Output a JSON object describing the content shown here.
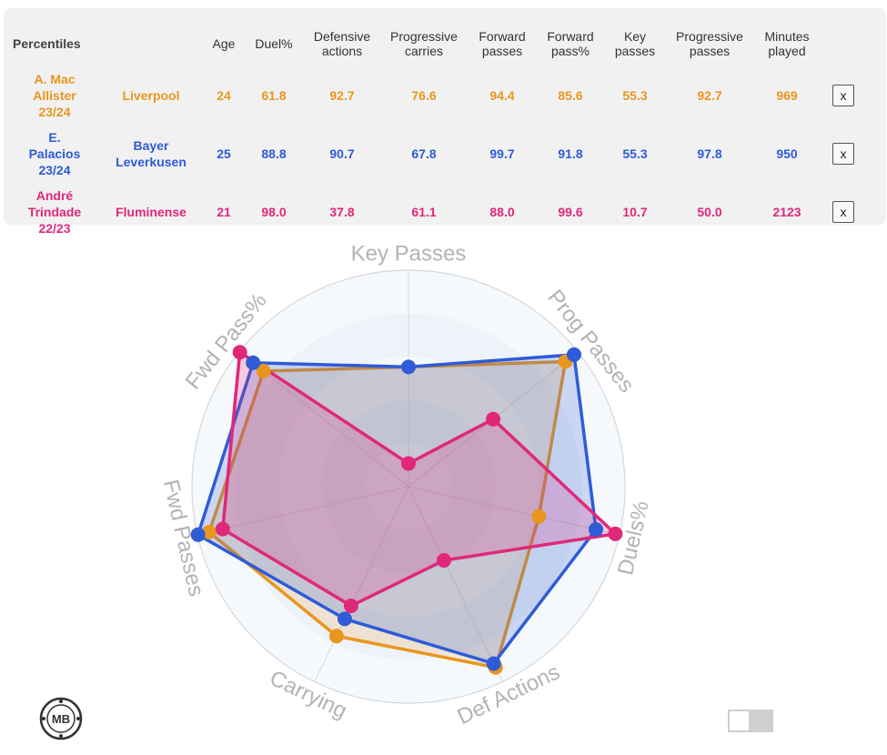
{
  "table": {
    "title": "Percentiles",
    "headers": [
      "Age",
      "Duel%",
      "Defensive\nactions",
      "Progressive\ncarries",
      "Forward\npasses",
      "Forward\npass%",
      "Key\npasses",
      "Progressive\npasses",
      "Minutes\nplayed"
    ],
    "remove_label": "x",
    "rows": [
      {
        "player": "A. Mac\nAllister\n23/24",
        "team": "Liverpool",
        "color": "#e8961f",
        "values": [
          "24",
          "61.8",
          "92.7",
          "76.6",
          "94.4",
          "85.6",
          "55.3",
          "92.7",
          "969"
        ]
      },
      {
        "player": "E.\nPalacios\n23/24",
        "team": "Bayer\nLeverkusen",
        "color": "#2f5bd6",
        "values": [
          "25",
          "88.8",
          "90.7",
          "67.8",
          "99.7",
          "91.8",
          "55.3",
          "97.8",
          "950"
        ]
      },
      {
        "player": "André\nTrindade\n22/23",
        "team": "Fluminense",
        "color": "#e0287a",
        "values": [
          "21",
          "98.0",
          "37.8",
          "61.1",
          "88.0",
          "99.6",
          "10.7",
          "50.0",
          "2123"
        ]
      }
    ]
  },
  "chart_data": {
    "type": "radar",
    "axes": [
      "Key Passes",
      "Prog Passes",
      "Duels%",
      "Def Actions",
      "Carrying",
      "Fwd Passes",
      "Fwd Pass%"
    ],
    "range": [
      0,
      100
    ],
    "grid": true,
    "series": [
      {
        "name": "A. Mac Allister 23/24",
        "color": "#e8961f",
        "fill": "rgba(232,150,31,0.18)",
        "values": [
          55.3,
          92.7,
          61.8,
          92.7,
          76.6,
          94.4,
          85.6
        ]
      },
      {
        "name": "E. Palacios 23/24",
        "color": "#2f5bd6",
        "fill": "rgba(47,91,214,0.22)",
        "values": [
          55.3,
          97.8,
          88.8,
          90.7,
          67.8,
          99.7,
          91.8
        ]
      },
      {
        "name": "André Trindade 22/23",
        "color": "#e0287a",
        "fill": "rgba(224,40,122,0.22)",
        "values": [
          10.7,
          50.0,
          98.0,
          37.8,
          61.1,
          88.0,
          99.6
        ]
      }
    ]
  },
  "logo": {
    "text": "MB"
  },
  "icons": {
    "logo": "mb-logo-icon",
    "toggle": "toggle-switch"
  }
}
